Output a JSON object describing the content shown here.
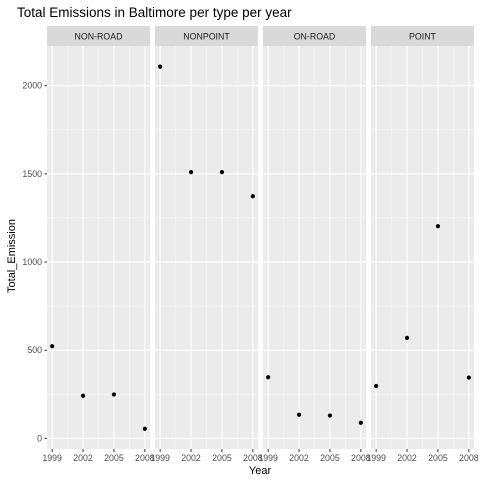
{
  "chart_data": {
    "type": "scatter",
    "title": "Total Emissions in Baltimore per type per year",
    "xlabel": "Year",
    "ylabel": "Total_Emission",
    "x_ticks": [
      1999,
      2002,
      2005,
      2008
    ],
    "y_ticks": [
      0,
      500,
      1000,
      1500,
      2000
    ],
    "ylim": [
      -60,
      2225
    ],
    "xlim": [
      1998.5,
      2008.5
    ],
    "grid": true,
    "facets": [
      {
        "name": "NON-ROAD",
        "x": [
          1999,
          2002,
          2005,
          2008
        ],
        "y": [
          523,
          242,
          249,
          55
        ]
      },
      {
        "name": "NONPOINT",
        "x": [
          1999,
          2002,
          2005,
          2008
        ],
        "y": [
          2108,
          1510,
          1510,
          1373
        ]
      },
      {
        "name": "ON-ROAD",
        "x": [
          1999,
          2002,
          2005,
          2008
        ],
        "y": [
          347,
          134,
          130,
          89
        ]
      },
      {
        "name": "POINT",
        "x": [
          1999,
          2002,
          2005,
          2008
        ],
        "y": [
          297,
          570,
          1203,
          345
        ]
      }
    ],
    "colors": {
      "panel_background": "#ebebeb",
      "grid_major": "#ffffff",
      "strip_background": "#d9d9d9",
      "point": "#000000",
      "tick": "#333333"
    }
  }
}
